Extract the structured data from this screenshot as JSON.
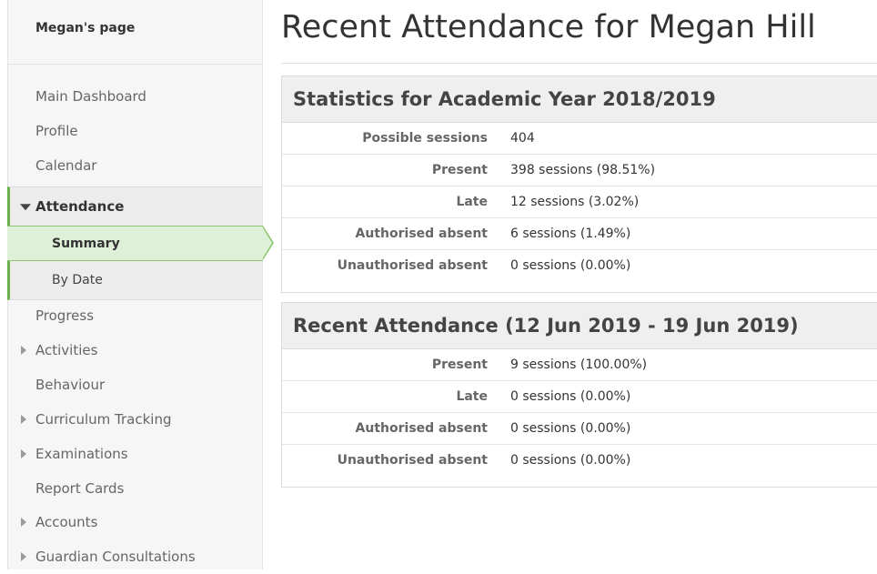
{
  "sidebar": {
    "title": "Megan's page",
    "items_top": [
      {
        "label": "Main Dashboard"
      },
      {
        "label": "Profile"
      },
      {
        "label": "Calendar"
      }
    ],
    "attendance": {
      "label": "Attendance",
      "sub_items": [
        {
          "label": "Summary",
          "active": true
        },
        {
          "label": "By Date"
        }
      ]
    },
    "items_bottom": [
      {
        "label": "Progress"
      },
      {
        "label": "Activities"
      },
      {
        "label": "Behaviour"
      },
      {
        "label": "Curriculum Tracking"
      },
      {
        "label": "Examinations"
      },
      {
        "label": "Report Cards"
      },
      {
        "label": "Accounts"
      },
      {
        "label": "Guardian Consultations"
      }
    ]
  },
  "main": {
    "title": "Recent Attendance for Megan Hill",
    "year_stats": {
      "heading": "Statistics for Academic Year 2018/2019",
      "rows": [
        {
          "label": "Possible sessions",
          "value": "404"
        },
        {
          "label": "Present",
          "value": "398 sessions (98.51%)"
        },
        {
          "label": "Late",
          "value": "12 sessions (3.02%)"
        },
        {
          "label": "Authorised absent",
          "value": "6 sessions (1.49%)"
        },
        {
          "label": "Unauthorised absent",
          "value": "0 sessions (0.00%)"
        }
      ]
    },
    "recent": {
      "heading": "Recent Attendance (12 Jun 2019 - 19 Jun 2019)",
      "rows": [
        {
          "label": "Present",
          "value": "9 sessions (100.00%)"
        },
        {
          "label": "Late",
          "value": "0 sessions (0.00%)"
        },
        {
          "label": "Authorised absent",
          "value": "0 sessions (0.00%)"
        },
        {
          "label": "Unauthorised absent",
          "value": "0 sessions (0.00%)"
        }
      ]
    }
  },
  "colors": {
    "accent_green": "#6ab04c",
    "active_bg": "#dff0d8"
  }
}
